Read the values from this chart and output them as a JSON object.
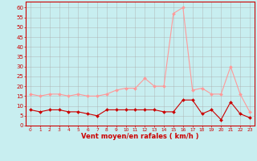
{
  "x": [
    0,
    1,
    2,
    3,
    4,
    5,
    6,
    7,
    8,
    9,
    10,
    11,
    12,
    13,
    14,
    15,
    16,
    17,
    18,
    19,
    20,
    21,
    22,
    23
  ],
  "wind_avg": [
    8,
    7,
    8,
    8,
    7,
    7,
    6,
    5,
    8,
    8,
    8,
    8,
    8,
    8,
    7,
    7,
    13,
    13,
    6,
    8,
    3,
    12,
    6,
    4
  ],
  "wind_gust": [
    16,
    15,
    16,
    16,
    15,
    16,
    15,
    15,
    16,
    18,
    19,
    19,
    24,
    20,
    20,
    57,
    60,
    18,
    19,
    16,
    16,
    30,
    16,
    7
  ],
  "bg_color": "#c8eef0",
  "grid_color": "#aaaaaa",
  "line_avg_color": "#cc0000",
  "line_gust_color": "#ff9999",
  "marker_color_avg": "#cc0000",
  "marker_color_gust": "#ff9999",
  "xlabel": "Vent moyen/en rafales ( km/h )",
  "xlabel_color": "#cc0000",
  "tick_color": "#cc0000",
  "yticks": [
    0,
    5,
    10,
    15,
    20,
    25,
    30,
    35,
    40,
    45,
    50,
    55,
    60
  ],
  "ylim": [
    0,
    63
  ],
  "xlim": [
    -0.5,
    23.5
  ],
  "axis_color": "#cc0000"
}
